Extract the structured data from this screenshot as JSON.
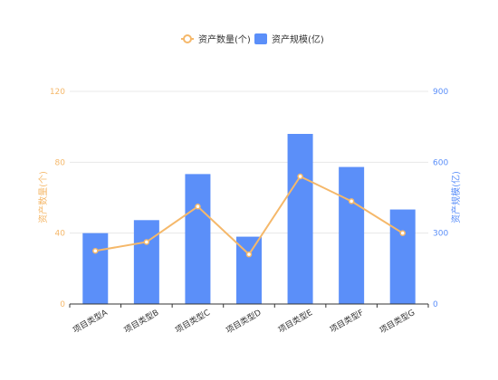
{
  "chart_data": {
    "type": "bar",
    "categories": [
      "项目类型A",
      "项目类型B",
      "项目类型C",
      "项目类型D",
      "项目类型E",
      "项目类型F",
      "项目类型G"
    ],
    "series": [
      {
        "name": "资产数量(个)",
        "type": "line",
        "axis": "left",
        "values": [
          30,
          35,
          55,
          28,
          72,
          58,
          40
        ]
      },
      {
        "name": "资产规模(亿)",
        "type": "bar",
        "axis": "right",
        "values": [
          300,
          355,
          550,
          285,
          720,
          580,
          400
        ]
      }
    ],
    "left_axis": {
      "label": "资产数量(个)",
      "range": [
        0,
        120
      ],
      "ticks": [
        "0",
        "40",
        "80",
        "120"
      ]
    },
    "right_axis": {
      "label": "资产规模(亿)",
      "range": [
        0,
        900
      ],
      "ticks": [
        "0",
        "300",
        "600",
        "900"
      ]
    },
    "legend_position": "top-center",
    "grid": true
  },
  "colors": {
    "line": "#f5b86a",
    "bar": "#5b8ff9",
    "left_axis": "#f5b86a",
    "right_axis": "#5b8ff9",
    "grid": "#e8e8e8"
  }
}
